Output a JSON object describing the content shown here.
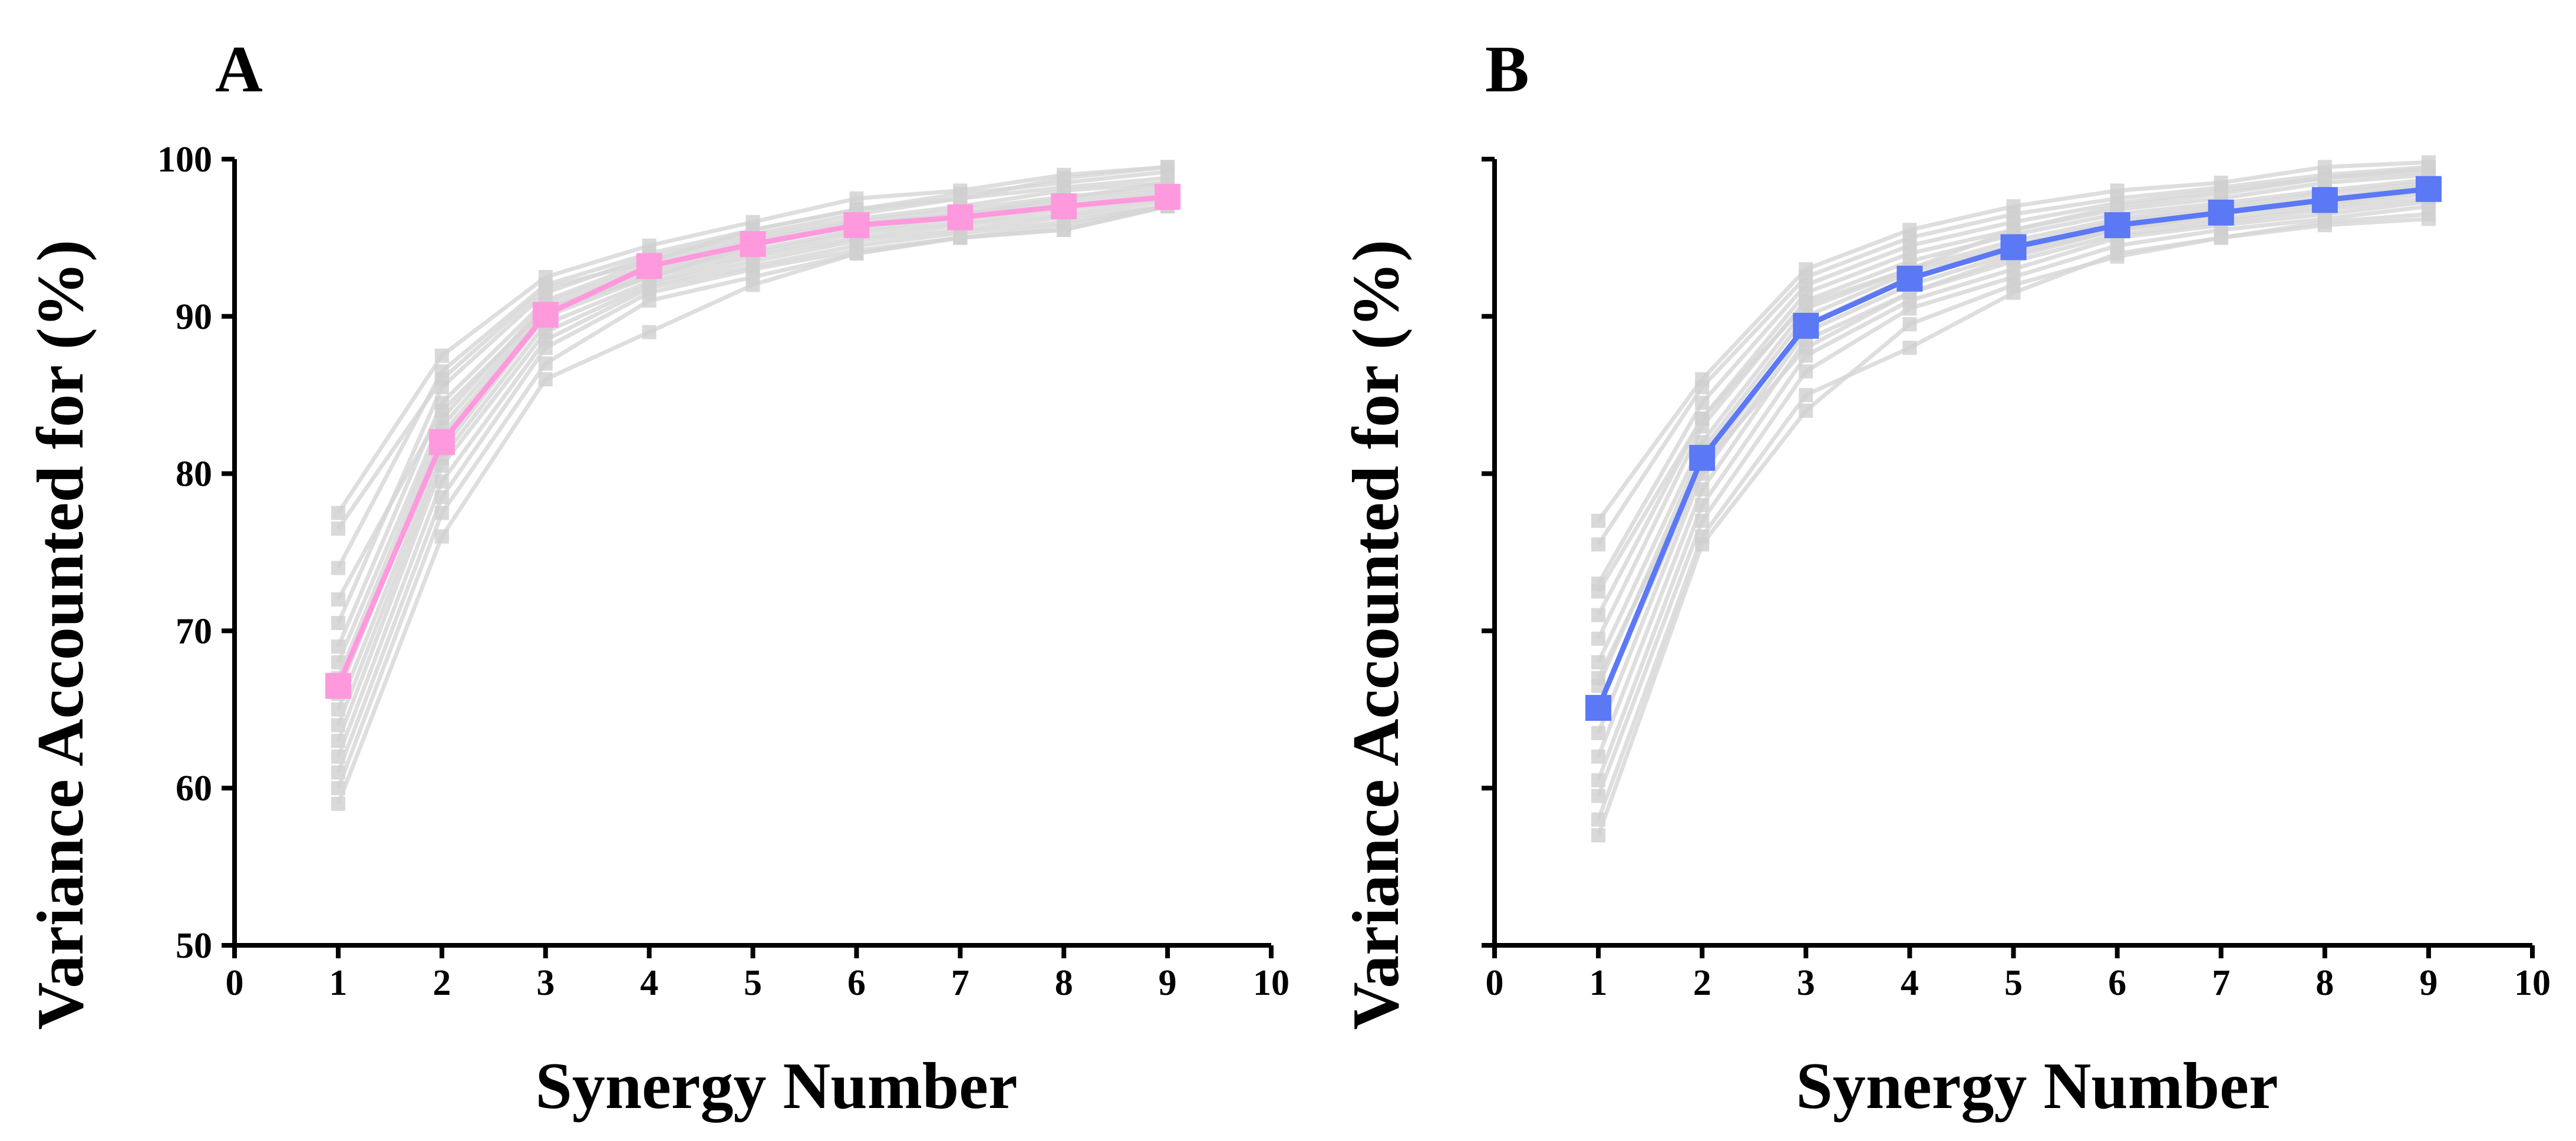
{
  "chart_data": [
    {
      "panel_label": "A",
      "type": "line",
      "xlabel": "Synergy Number",
      "ylabel": "Variance Accounted for (%)",
      "xlim": [
        0,
        10
      ],
      "ylim": [
        50,
        100
      ],
      "xticks": [
        0,
        1,
        2,
        3,
        4,
        5,
        6,
        7,
        8,
        9,
        10
      ],
      "yticks": [
        50,
        60,
        70,
        80,
        90,
        100
      ],
      "y_tick_labels_shown": true,
      "x": [
        1,
        2,
        3,
        4,
        5,
        6,
        7,
        8,
        9
      ],
      "mean_series": {
        "name": "mean",
        "color": "#ff99dd",
        "marker": "square",
        "values": [
          66.5,
          82.0,
          90.1,
          93.2,
          94.6,
          95.8,
          96.3,
          97.0,
          97.6
        ]
      },
      "subject_series": [
        [
          77.5,
          87.5,
          92.5,
          94.5,
          96.0,
          97.5,
          98.0,
          99.0,
          99.5
        ],
        [
          74.0,
          86.5,
          92.0,
          94.0,
          95.5,
          96.8,
          97.8,
          98.5,
          99.2
        ],
        [
          70.5,
          85.5,
          91.5,
          93.8,
          95.2,
          96.5,
          97.5,
          98.2,
          98.8
        ],
        [
          69.0,
          84.5,
          91.0,
          93.5,
          95.0,
          96.2,
          97.0,
          98.0,
          98.5
        ],
        [
          68.0,
          83.5,
          90.8,
          93.2,
          94.8,
          96.0,
          96.8,
          97.6,
          98.2
        ],
        [
          67.0,
          83.0,
          90.5,
          93.0,
          94.5,
          95.8,
          96.5,
          97.3,
          98.0
        ],
        [
          66.0,
          82.5,
          90.2,
          92.8,
          94.2,
          95.5,
          96.3,
          97.0,
          97.8
        ],
        [
          65.0,
          81.5,
          90.0,
          92.5,
          94.0,
          95.3,
          96.0,
          96.8,
          97.5
        ],
        [
          64.0,
          81.0,
          89.5,
          92.2,
          93.8,
          95.0,
          95.8,
          96.5,
          97.3
        ],
        [
          63.0,
          80.5,
          89.0,
          92.0,
          93.5,
          94.8,
          95.5,
          96.3,
          97.0
        ],
        [
          62.0,
          79.5,
          88.5,
          91.8,
          93.2,
          94.5,
          95.3,
          96.0,
          97.0
        ],
        [
          61.0,
          78.5,
          88.0,
          91.5,
          93.0,
          94.2,
          95.0,
          95.8,
          97.0
        ],
        [
          60.0,
          77.5,
          87.0,
          91.0,
          92.5,
          94.0,
          95.0,
          95.5,
          97.0
        ],
        [
          59.0,
          76.0,
          86.0,
          89.0,
          92.0,
          94.0,
          95.0,
          95.5,
          97.0
        ],
        [
          76.5,
          86.0,
          91.8,
          93.5,
          95.5,
          96.8,
          97.5,
          98.8,
          99.5
        ],
        [
          72.0,
          84.0,
          90.5,
          92.5,
          94.5,
          95.8,
          96.5,
          97.5,
          98.5
        ]
      ]
    },
    {
      "panel_label": "B",
      "type": "line",
      "xlabel": "Synergy Number",
      "ylabel": "Variance Accounted for (%)",
      "xlim": [
        0,
        10
      ],
      "ylim": [
        50,
        100
      ],
      "xticks": [
        0,
        1,
        2,
        3,
        4,
        5,
        6,
        7,
        8,
        9,
        10
      ],
      "yticks": [
        50,
        60,
        70,
        80,
        90,
        100
      ],
      "y_tick_labels_shown": false,
      "x": [
        1,
        2,
        3,
        4,
        5,
        6,
        7,
        8,
        9
      ],
      "mean_series": {
        "name": "mean",
        "color": "#5b78f5",
        "marker": "square",
        "values": [
          65.1,
          81.0,
          89.4,
          92.4,
          94.4,
          95.8,
          96.6,
          97.4,
          98.1
        ]
      },
      "subject_series": [
        [
          77.0,
          86.0,
          93.0,
          95.5,
          97.0,
          98.0,
          98.5,
          99.5,
          99.8
        ],
        [
          75.5,
          85.5,
          92.5,
          95.0,
          96.5,
          97.5,
          98.2,
          99.0,
          99.5
        ],
        [
          73.0,
          84.5,
          92.0,
          94.5,
          96.0,
          97.2,
          98.0,
          98.8,
          99.2
        ],
        [
          71.0,
          83.5,
          91.5,
          94.0,
          95.5,
          96.8,
          97.5,
          98.5,
          99.0
        ],
        [
          69.5,
          83.0,
          91.0,
          93.5,
          95.2,
          96.5,
          97.2,
          98.0,
          98.7
        ],
        [
          68.0,
          82.0,
          90.5,
          93.0,
          94.8,
          96.2,
          97.0,
          97.8,
          98.5
        ],
        [
          66.5,
          81.5,
          90.0,
          92.8,
          94.5,
          96.0,
          96.8,
          97.5,
          98.2
        ],
        [
          65.0,
          80.5,
          89.5,
          92.5,
          94.2,
          95.7,
          96.5,
          97.2,
          98.0
        ],
        [
          63.5,
          80.0,
          89.0,
          92.0,
          94.0,
          95.5,
          96.2,
          97.0,
          97.8
        ],
        [
          62.0,
          79.0,
          88.5,
          91.5,
          93.5,
          95.2,
          96.0,
          96.8,
          97.5
        ],
        [
          60.5,
          78.0,
          87.5,
          91.0,
          93.0,
          95.0,
          95.8,
          96.5,
          97.3
        ],
        [
          59.5,
          77.0,
          86.5,
          90.5,
          92.5,
          94.5,
          95.5,
          96.2,
          97.0
        ],
        [
          58.0,
          76.0,
          85.0,
          88.0,
          91.5,
          94.0,
          95.0,
          96.0,
          96.5
        ],
        [
          57.0,
          75.5,
          84.0,
          89.5,
          92.0,
          93.8,
          95.0,
          95.8,
          96.2
        ],
        [
          72.5,
          83.5,
          90.8,
          93.0,
          95.5,
          97.0,
          97.8,
          98.8,
          99.4
        ],
        [
          67.0,
          80.5,
          88.0,
          91.5,
          93.8,
          95.5,
          96.5,
          97.5,
          98.3
        ]
      ]
    }
  ],
  "colors": {
    "axis": "#000000",
    "subject_lines": "#d6d6d6",
    "subject_markers": "#cfcfcf"
  }
}
